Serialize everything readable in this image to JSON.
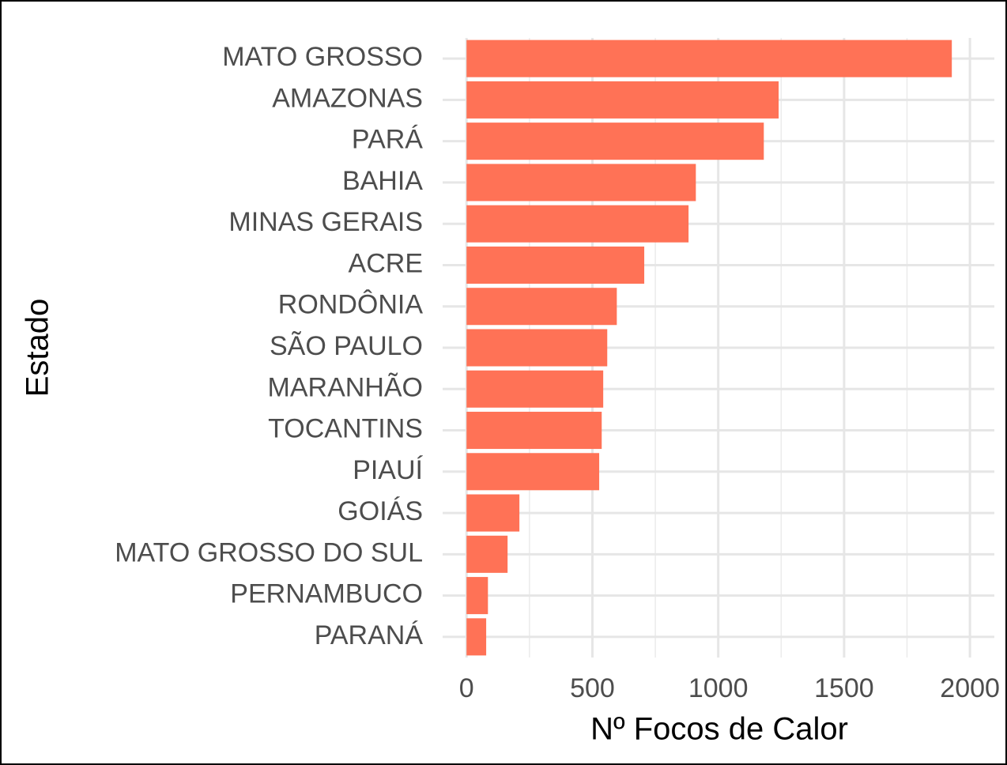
{
  "chart_data": {
    "type": "barh",
    "x_label": "Nº Focos de Calor",
    "y_label": "Estado",
    "categories": [
      "MATO GROSSO",
      "AMAZONAS",
      "PARÁ",
      "BAHIA",
      "MINAS GERAIS",
      "ACRE",
      "RONDÔNIA",
      "SÃO PAULO",
      "MARANHÃO",
      "TOCANTINS",
      "PIAUÍ",
      "GOIÁS",
      "MATO GROSSO DO SUL",
      "PERNAMBUCO",
      "PARANÁ"
    ],
    "values": [
      1928,
      1240,
      1181,
      911,
      882,
      706,
      597,
      559,
      543,
      537,
      527,
      210,
      163,
      85,
      78
    ],
    "color": "#ff7256",
    "xlim": [
      -95,
      2097
    ],
    "xticks": [
      0,
      500,
      1000,
      1500,
      2000
    ],
    "xminor": [
      250,
      750,
      1250,
      1750
    ],
    "grid": true
  }
}
